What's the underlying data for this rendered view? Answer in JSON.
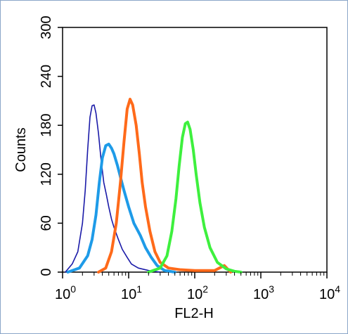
{
  "chart_data": {
    "type": "line",
    "title": "",
    "xlabel": "FL2-H",
    "ylabel": "Counts",
    "x_scale": "log",
    "xlim": [
      1,
      10000
    ],
    "ylim": [
      0,
      300
    ],
    "x_ticks": [
      {
        "base": "10",
        "exp": "0"
      },
      {
        "base": "10",
        "exp": "1"
      },
      {
        "base": "10",
        "exp": "2"
      },
      {
        "base": "10",
        "exp": "3"
      },
      {
        "base": "10",
        "exp": "4"
      }
    ],
    "y_ticks": [
      "0",
      "60",
      "120",
      "180",
      "240",
      "300"
    ],
    "grid": false,
    "legend": "none",
    "series": [
      {
        "color": "#1a1aa8",
        "x": [
          1.1,
          1.4,
          1.7,
          2.0,
          2.2,
          2.4,
          2.6,
          2.8,
          3.0,
          3.2,
          3.5,
          3.8,
          4.2,
          4.6,
          5.0,
          5.5,
          6.0,
          7.0,
          8.0,
          9.5,
          11,
          14,
          20,
          30
        ],
        "y": [
          0,
          10,
          25,
          60,
          100,
          150,
          190,
          204,
          205,
          195,
          170,
          140,
          110,
          95,
          80,
          65,
          55,
          40,
          28,
          18,
          10,
          5,
          2,
          0
        ]
      },
      {
        "color": "#1e9be8",
        "x": [
          1.2,
          1.8,
          2.4,
          2.8,
          3.2,
          3.6,
          4.0,
          4.5,
          5.0,
          5.5,
          6.0,
          6.8,
          7.6,
          8.5,
          10,
          12,
          15,
          18,
          22,
          27,
          35,
          50
        ],
        "y": [
          0,
          5,
          20,
          40,
          70,
          110,
          140,
          155,
          157,
          152,
          145,
          130,
          115,
          100,
          80,
          60,
          45,
          30,
          18,
          8,
          2,
          0
        ]
      },
      {
        "color": "#ff6a1a",
        "x": [
          3.5,
          4.5,
          5.5,
          6.5,
          7.5,
          8.5,
          9.5,
          10.5,
          11.5,
          13,
          14.5,
          16,
          18,
          21,
          25,
          30,
          40,
          60,
          100,
          200,
          280,
          350
        ],
        "y": [
          0,
          5,
          25,
          60,
          110,
          160,
          200,
          212,
          205,
          180,
          145,
          110,
          80,
          50,
          25,
          12,
          5,
          3,
          2,
          2,
          8,
          0
        ]
      },
      {
        "color": "#3ef03e",
        "x": [
          20,
          30,
          38,
          45,
          52,
          58,
          65,
          72,
          78,
          85,
          95,
          105,
          120,
          140,
          170,
          220,
          300,
          400,
          500
        ],
        "y": [
          0,
          5,
          20,
          50,
          90,
          130,
          165,
          182,
          184,
          175,
          150,
          120,
          85,
          55,
          30,
          12,
          4,
          1,
          0
        ]
      }
    ]
  }
}
